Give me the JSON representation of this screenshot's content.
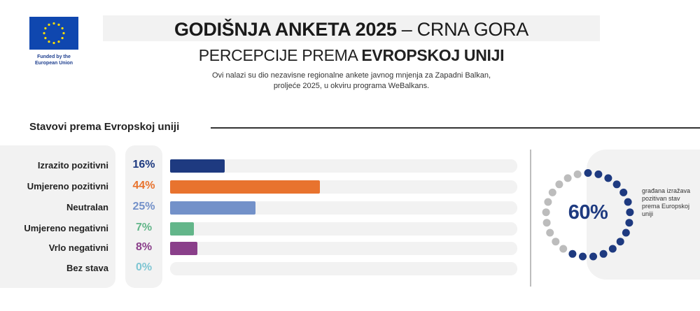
{
  "logo": {
    "caption_line1": "Funded by the",
    "caption_line2": "European Union",
    "flag_color": "#0f47af",
    "star_color": "#ffde00"
  },
  "header": {
    "title_bold": "GODIŠNJA ANKETA 2025",
    "title_rest": " – CRNA GORA",
    "subtitle_plain": "PERCEPCIJE PREMA ",
    "subtitle_bold": "EVROPSKOJ UNIJI",
    "desc_line1": "Ovi nalazi su dio nezavisne regionalne ankete javnog mnjenja za Zapadni Balkan,",
    "desc_line2": "proljeće 2025, u okviru programa WeBalkans."
  },
  "section": {
    "title": "Stavovi prema Evropskoj uniji"
  },
  "rows": [
    {
      "label": "Izrazito pozitivni",
      "pct": "16%",
      "value": 16,
      "color": "#1e3a80"
    },
    {
      "label": "Umjereno pozitivni",
      "pct": "44%",
      "value": 44,
      "color": "#e8732e"
    },
    {
      "label": "Neutralan",
      "pct": "25%",
      "value": 25,
      "color": "#7391c9"
    },
    {
      "label": "Umjereno negativni",
      "pct": "7%",
      "value": 7,
      "color": "#63b68a"
    },
    {
      "label": "Vrlo negativni",
      "pct": "8%",
      "value": 8,
      "color": "#8a3f8a"
    },
    {
      "label": "Bez stava",
      "pct": "0%",
      "value": 0,
      "color": "#7fc6d3"
    }
  ],
  "summary": {
    "pct": "60%",
    "value": 60,
    "text": "građana izražava pozitivan stav prema Europskoj uniji",
    "dot_on_color": "#1e3a80",
    "dot_off_color": "#bcbcbc",
    "dot_count": 25
  },
  "chart_data": {
    "type": "bar",
    "orientation": "horizontal",
    "title": "Stavovi prema Evropskoj uniji",
    "categories": [
      "Izrazito pozitivni",
      "Umjereno pozitivni",
      "Neutralan",
      "Umjereno negativni",
      "Vrlo negativni",
      "Bez stava"
    ],
    "values": [
      16,
      44,
      25,
      7,
      8,
      0
    ],
    "unit": "%",
    "colors": [
      "#1e3a80",
      "#e8732e",
      "#7391c9",
      "#63b68a",
      "#8a3f8a",
      "#7fc6d3"
    ],
    "xlim": [
      0,
      100
    ],
    "grid": false,
    "legend": "none",
    "annotations": [
      {
        "type": "donut-dots",
        "value": 60,
        "label": "60%",
        "text": "građana izražava pozitivan stav prema Europskoj uniji"
      }
    ]
  }
}
